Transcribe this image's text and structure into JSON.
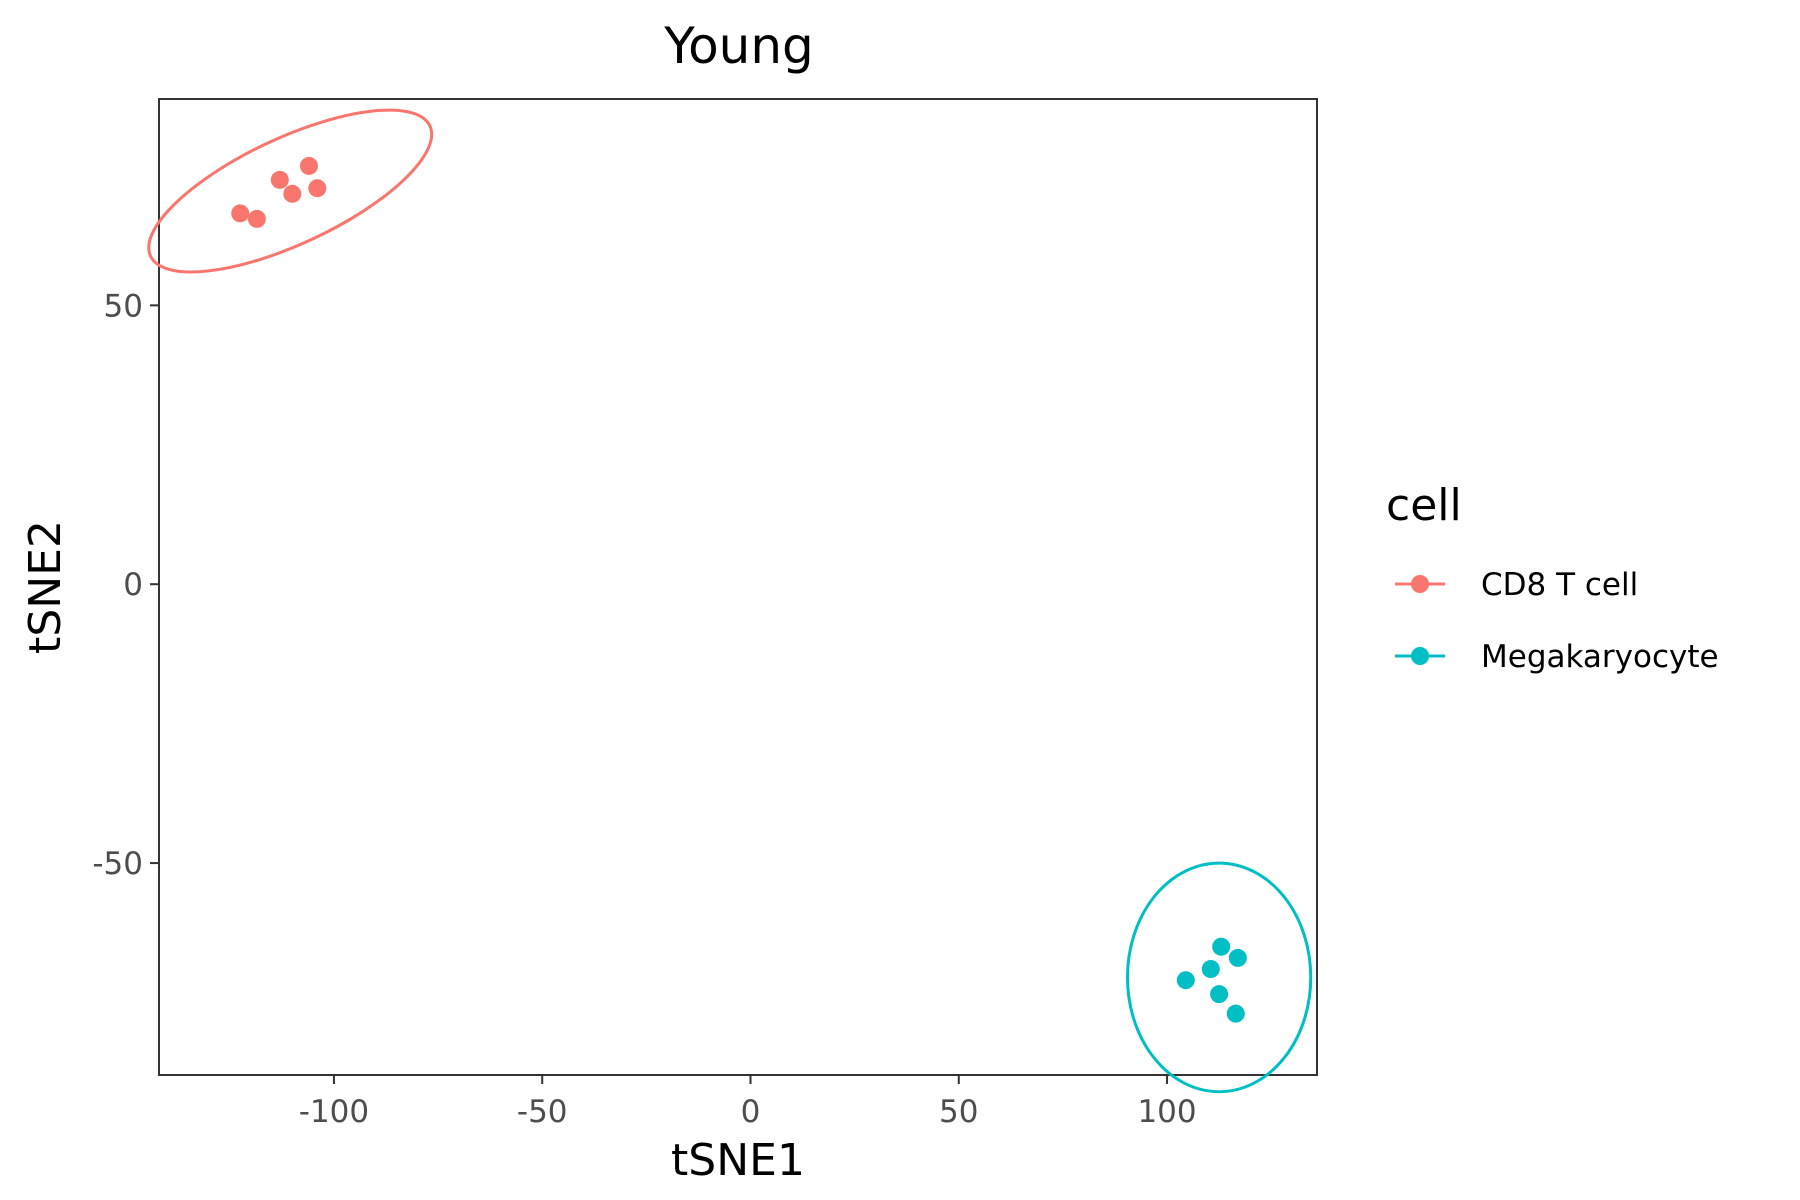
{
  "chart_data": {
    "type": "scatter",
    "title": "Young",
    "xlabel": "tSNE1",
    "ylabel": "tSNE2",
    "xlim": [
      -142,
      136
    ],
    "ylim": [
      -88,
      87
    ],
    "x_ticks": [
      -100,
      -50,
      0,
      50,
      100
    ],
    "y_ticks": [
      -50,
      0,
      50
    ],
    "grid": false,
    "legend": {
      "title": "cell",
      "placement": "right"
    },
    "series": [
      {
        "name": "CD8 T cell",
        "color": "#F8766D",
        "points": [
          {
            "x": -122.5,
            "y": 66.5
          },
          {
            "x": -118.5,
            "y": 65.5
          },
          {
            "x": -113,
            "y": 72.5
          },
          {
            "x": -110,
            "y": 70
          },
          {
            "x": -106,
            "y": 75
          },
          {
            "x": -104,
            "y": 71
          }
        ],
        "ellipse": {
          "cx": -110.5,
          "cy": 70.5,
          "rx": 37,
          "ry": 9.5,
          "angle_deg": -25
        }
      },
      {
        "name": "Megakaryocyte",
        "color": "#00BFC4",
        "points": [
          {
            "x": 104.5,
            "y": -71
          },
          {
            "x": 110.5,
            "y": -69
          },
          {
            "x": 113,
            "y": -65
          },
          {
            "x": 117,
            "y": -67
          },
          {
            "x": 112.5,
            "y": -73.5
          },
          {
            "x": 116.5,
            "y": -77
          }
        ],
        "ellipse": {
          "cx": 112.5,
          "cy": -70.5,
          "rx": 22,
          "ry": 20.5,
          "angle_deg": 0
        }
      }
    ]
  }
}
